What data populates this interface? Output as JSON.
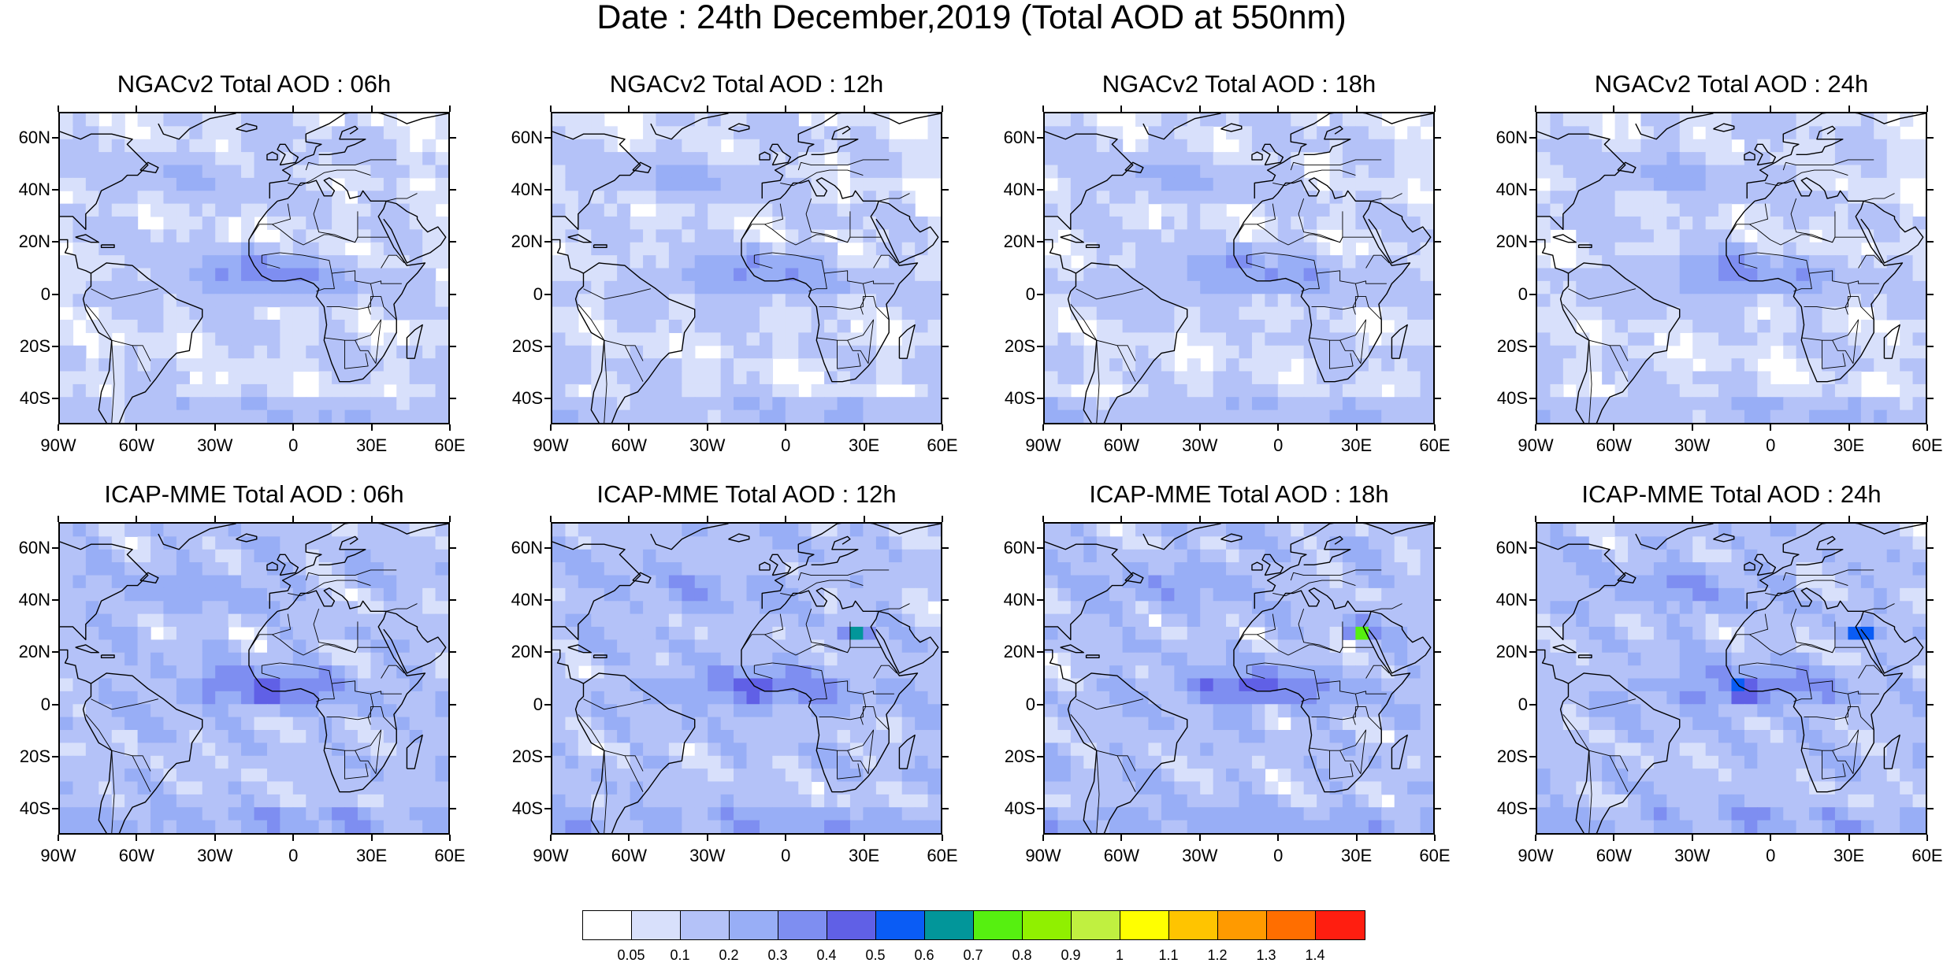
{
  "title": "Date : 24th December,2019 (Total AOD at 550nm)",
  "panels": [
    {
      "title": "NGACv2 Total AOD : 06h",
      "model": "ngac",
      "hour": 6
    },
    {
      "title": "NGACv2 Total AOD : 12h",
      "model": "ngac",
      "hour": 12
    },
    {
      "title": "NGACv2 Total AOD : 18h",
      "model": "ngac",
      "hour": 18
    },
    {
      "title": "NGACv2 Total AOD : 24h",
      "model": "ngac",
      "hour": 24
    },
    {
      "title": "ICAP-MME Total AOD : 06h",
      "model": "icap",
      "hour": 6
    },
    {
      "title": "ICAP-MME Total AOD : 12h",
      "model": "icap",
      "hour": 12
    },
    {
      "title": "ICAP-MME Total AOD : 18h",
      "model": "icap",
      "hour": 18
    },
    {
      "title": "ICAP-MME Total AOD : 24h",
      "model": "icap",
      "hour": 24
    }
  ],
  "map": {
    "lon_range": [
      -90,
      60
    ],
    "lat_range": [
      -50,
      70
    ],
    "lat_ticks": [
      "60N",
      "40N",
      "20N",
      "0",
      "20S",
      "40S"
    ],
    "lon_ticks": [
      "90W",
      "60W",
      "30W",
      "0",
      "30E",
      "60E"
    ]
  },
  "colorbar": {
    "colors": [
      "#ffffff",
      "#d8e0fb",
      "#b4c2f8",
      "#98aef6",
      "#7e8ef1",
      "#6060e6",
      "#0a5cf5",
      "#02969a",
      "#56f010",
      "#90f000",
      "#c0f040",
      "#ffff00",
      "#ffc400",
      "#ff9a00",
      "#ff6e00",
      "#ff1e10"
    ],
    "labels": [
      "0.05",
      "0.1",
      "0.2",
      "0.3",
      "0.4",
      "0.5",
      "0.6",
      "0.7",
      "0.8",
      "0.9",
      "1",
      "1.1",
      "1.2",
      "1.3",
      "1.4"
    ]
  }
}
